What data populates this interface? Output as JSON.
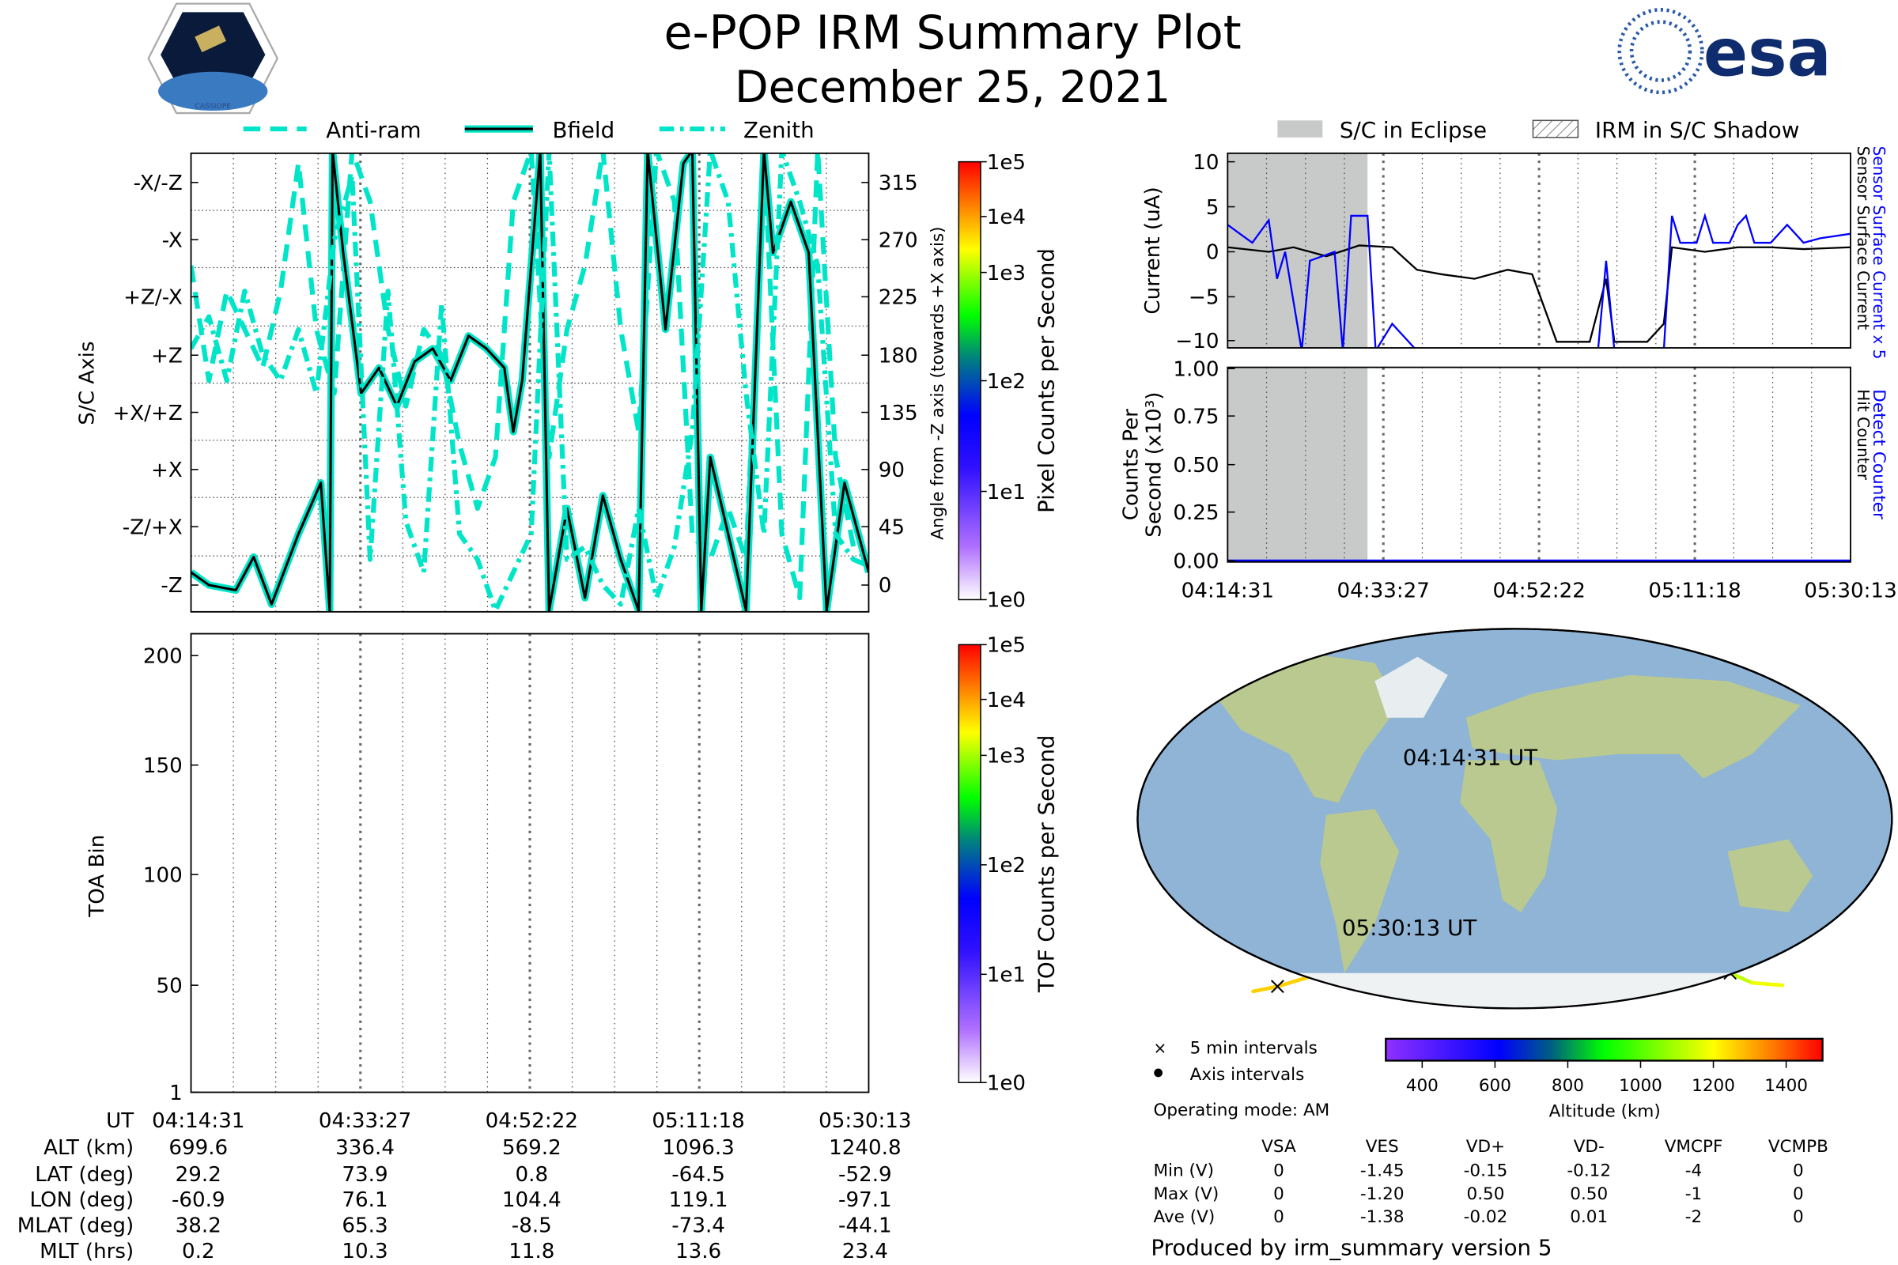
{
  "header": {
    "title": "e-POP IRM Summary Plot",
    "date": "December 25, 2021",
    "left_logo": "CASSIOPE",
    "right_logo": "esa"
  },
  "colors": {
    "trace_cyan": "#00e5c8",
    "current_blue": "#0000ff",
    "eclipse_gray": "#c8cac9",
    "ocean": "#8fb4d6",
    "land": "#b9c98f"
  },
  "attitude_legend": [
    "Anti-ram",
    "Bfield",
    "Zenith"
  ],
  "eclipse_legend": [
    "S/C in Eclipse",
    "IRM in S/C Shadow"
  ],
  "chart_data": [
    {
      "type": "line",
      "name": "attitude",
      "ylabel": "S/C Axis",
      "ylabel_right": "Angle from -Z axis (towards +X axis)",
      "y_axis_labels": [
        "-X/-Z",
        "-X",
        "+Z/-X",
        "+Z",
        "+X/+Z",
        "+X",
        "-Z/+X",
        "-Z"
      ],
      "y_right_ticks": [
        "315",
        "270",
        "225",
        "180",
        "135",
        "90",
        "45",
        "0"
      ],
      "ylim": [
        -12,
        345
      ],
      "xlim_minutes": [
        0,
        75.7
      ],
      "grid": true,
      "legend": "top",
      "colorbar": {
        "label": "Pixel Counts per Second",
        "ticks": [
          "1e5",
          "1e4",
          "1e3",
          "1e2",
          "1e1",
          "1e0"
        ]
      },
      "series": [
        {
          "name": "Anti-ram",
          "style": "dashed",
          "points": [
            [
              0,
              250
            ],
            [
              2,
              160
            ],
            [
              4,
              230
            ],
            [
              6,
              200
            ],
            [
              8,
              170
            ],
            [
              10,
              230
            ],
            [
              12,
              330
            ],
            [
              14,
              200
            ],
            [
              16,
              150
            ],
            [
              18,
              340
            ],
            [
              20,
              300
            ],
            [
              22,
              200
            ],
            [
              24,
              140
            ],
            [
              26,
              200
            ],
            [
              28,
              180
            ],
            [
              30,
              110
            ],
            [
              32,
              60
            ],
            [
              34,
              100
            ],
            [
              36,
              300
            ],
            [
              38,
              340
            ],
            [
              40,
              100
            ],
            [
              42,
              200
            ],
            [
              44,
              250
            ],
            [
              46,
              340
            ],
            [
              48,
              200
            ],
            [
              50,
              120
            ],
            [
              52,
              340
            ],
            [
              54,
              300
            ],
            [
              56,
              40
            ],
            [
              58,
              20
            ],
            [
              60,
              60
            ],
            [
              62,
              20
            ],
            [
              64,
              340
            ],
            [
              66,
              40
            ],
            [
              68,
              -10
            ],
            [
              70,
              340
            ],
            [
              72,
              100
            ],
            [
              74,
              30
            ],
            [
              75.7,
              20
            ]
          ]
        },
        {
          "name": "Bfield",
          "style": "solid",
          "points": [
            [
              0,
              10
            ],
            [
              2,
              0
            ],
            [
              5,
              -4
            ],
            [
              7,
              22
            ],
            [
              9,
              -15
            ],
            [
              12,
              40
            ],
            [
              14.5,
              80
            ],
            [
              15.5,
              -20
            ],
            [
              15.8,
              340
            ],
            [
              17,
              260
            ],
            [
              19,
              150
            ],
            [
              21,
              170
            ],
            [
              23,
              140
            ],
            [
              25,
              175
            ],
            [
              27,
              185
            ],
            [
              29,
              160
            ],
            [
              31,
              195
            ],
            [
              33,
              185
            ],
            [
              35,
              170
            ],
            [
              36,
              120
            ],
            [
              37,
              160
            ],
            [
              39,
              340
            ],
            [
              40,
              -20
            ],
            [
              42,
              60
            ],
            [
              44,
              -10
            ],
            [
              46,
              70
            ],
            [
              48,
              20
            ],
            [
              50,
              -20
            ],
            [
              51,
              340
            ],
            [
              53,
              200
            ],
            [
              55,
              330
            ],
            [
              56,
              340
            ],
            [
              57,
              -20
            ],
            [
              58,
              100
            ],
            [
              60,
              40
            ],
            [
              62,
              -20
            ],
            [
              64,
              340
            ],
            [
              65,
              260
            ],
            [
              67,
              300
            ],
            [
              69,
              260
            ],
            [
              71,
              -20
            ],
            [
              73,
              80
            ],
            [
              75.7,
              10
            ]
          ]
        },
        {
          "name": "Zenith",
          "style": "dashdot",
          "points": [
            [
              0,
              185
            ],
            [
              2,
              210
            ],
            [
              4,
              160
            ],
            [
              6,
              230
            ],
            [
              8,
              180
            ],
            [
              10,
              160
            ],
            [
              12,
              200
            ],
            [
              14,
              150
            ],
            [
              16,
              270
            ],
            [
              18,
              320
            ],
            [
              20,
              20
            ],
            [
              22,
              230
            ],
            [
              24,
              50
            ],
            [
              26,
              10
            ],
            [
              28,
              220
            ],
            [
              30,
              40
            ],
            [
              32,
              20
            ],
            [
              34,
              -20
            ],
            [
              36,
              10
            ],
            [
              38,
              40
            ],
            [
              40,
              340
            ],
            [
              42,
              20
            ],
            [
              44,
              30
            ],
            [
              46,
              0
            ],
            [
              48,
              -15
            ],
            [
              50,
              60
            ],
            [
              52,
              -10
            ],
            [
              54,
              30
            ],
            [
              56,
              120
            ],
            [
              58,
              340
            ],
            [
              60,
              300
            ],
            [
              62,
              150
            ],
            [
              64,
              40
            ],
            [
              66,
              340
            ],
            [
              68,
              300
            ],
            [
              70,
              250
            ],
            [
              72,
              40
            ],
            [
              74,
              20
            ],
            [
              75.7,
              15
            ]
          ]
        }
      ]
    },
    {
      "type": "heatmap",
      "name": "toa",
      "ylabel": "TOA Bin",
      "y_ticks": [
        "200",
        "150",
        "100",
        "50",
        "1"
      ],
      "ylim": [
        1,
        210
      ],
      "colorbar": {
        "label": "TOF Counts per Second",
        "ticks": [
          "1e5",
          "1e4",
          "1e3",
          "1e2",
          "1e1",
          "1e0"
        ]
      }
    },
    {
      "type": "line",
      "name": "current",
      "ylabel": "Current (uA)",
      "y_ticks": [
        "10",
        "5",
        "0",
        "−5",
        "−10"
      ],
      "ylim": [
        -11,
        11
      ],
      "right_labels": [
        "Sensor Surface Current x 5",
        "Sensor Surface Current"
      ],
      "eclipse_minutes": [
        0,
        17
      ],
      "series": [
        {
          "name": "Sensor Surface Current x 5",
          "color": "#0000ff",
          "points": [
            [
              0,
              3
            ],
            [
              1.5,
              2
            ],
            [
              3,
              1
            ],
            [
              5,
              3.5
            ],
            [
              6,
              -3
            ],
            [
              7,
              0
            ],
            [
              9,
              -11
            ],
            [
              10,
              -1
            ],
            [
              13,
              0
            ],
            [
              14,
              -11
            ],
            [
              15,
              4
            ],
            [
              17,
              4
            ],
            [
              18,
              -11
            ],
            [
              20,
              -8
            ],
            [
              23,
              -11
            ],
            [
              45,
              -11
            ],
            [
              46,
              -1
            ],
            [
              47,
              -11
            ],
            [
              53,
              -11
            ],
            [
              54,
              4
            ],
            [
              55,
              1
            ],
            [
              57,
              1
            ],
            [
              58,
              4
            ],
            [
              59,
              1
            ],
            [
              61,
              1
            ],
            [
              62,
              3
            ],
            [
              63,
              4
            ],
            [
              64,
              1
            ],
            [
              66,
              1
            ],
            [
              68,
              3
            ],
            [
              70,
              1
            ],
            [
              72,
              1.5
            ],
            [
              75.7,
              2
            ]
          ]
        },
        {
          "name": "Sensor Surface Current",
          "color": "#000000",
          "points": [
            [
              0,
              0.5
            ],
            [
              5,
              0
            ],
            [
              8,
              0.5
            ],
            [
              12,
              -0.5
            ],
            [
              16,
              0.7
            ],
            [
              20,
              0.5
            ],
            [
              23,
              -2
            ],
            [
              26,
              -2.5
            ],
            [
              30,
              -3
            ],
            [
              34,
              -2
            ],
            [
              37,
              -2.5
            ],
            [
              40,
              -10
            ],
            [
              44,
              -10
            ],
            [
              46,
              -3
            ],
            [
              47,
              -10
            ],
            [
              51,
              -10
            ],
            [
              53,
              -8
            ],
            [
              54,
              0.5
            ],
            [
              58,
              0
            ],
            [
              62,
              0.5
            ],
            [
              66,
              0.5
            ],
            [
              70,
              0.3
            ],
            [
              75.7,
              0.5
            ]
          ]
        }
      ]
    },
    {
      "type": "line",
      "name": "counts",
      "ylabel": "Counts Per Second (x10³)",
      "ylabel_lines": [
        "Counts Per",
        "Second (x10³)"
      ],
      "y_ticks": [
        "1.00",
        "0.75",
        "0.50",
        "0.25",
        "0.00"
      ],
      "ylim": [
        0,
        1
      ],
      "right_labels": [
        "Detect Counter",
        "Hit Counter"
      ],
      "x_ticks": [
        "04:14:31",
        "04:33:27",
        "04:52:22",
        "05:11:18",
        "05:30:13"
      ],
      "series": [
        {
          "name": "Detect Counter",
          "color": "#0000ff",
          "points": [
            [
              0,
              0
            ],
            [
              75.7,
              0
            ]
          ]
        }
      ]
    }
  ],
  "map": {
    "start_label": "04:14:31 UT",
    "end_label": "05:30:13 UT",
    "legend": [
      "5 min intervals",
      "Axis intervals"
    ],
    "colorbar_ticks": [
      "400",
      "600",
      "800",
      "1000",
      "1200",
      "1400"
    ],
    "colorbar_label": "Altitude (km)",
    "operating_mode": "Operating mode: AM"
  },
  "ephemeris": {
    "rows": [
      {
        "label": "UT",
        "values": [
          "04:14:31",
          "04:33:27",
          "04:52:22",
          "05:11:18",
          "05:30:13"
        ]
      },
      {
        "label": "ALT (km)",
        "values": [
          "699.6",
          "336.4",
          "569.2",
          "1096.3",
          "1240.8"
        ]
      },
      {
        "label": "LAT (deg)",
        "values": [
          "29.2",
          "73.9",
          "0.8",
          "-64.5",
          "-52.9"
        ]
      },
      {
        "label": "LON (deg)",
        "values": [
          "-60.9",
          "76.1",
          "104.4",
          "119.1",
          "-97.1"
        ]
      },
      {
        "label": "MLAT (deg)",
        "values": [
          "38.2",
          "65.3",
          "-8.5",
          "-73.4",
          "-44.1"
        ]
      },
      {
        "label": "MLT (hrs)",
        "values": [
          "0.2",
          "10.3",
          "11.8",
          "13.6",
          "23.4"
        ]
      }
    ]
  },
  "voltages": {
    "columns": [
      "VSA",
      "VES",
      "VD+",
      "VD-",
      "VMCPF",
      "VCMPB"
    ],
    "rows": [
      {
        "label": "Min (V)",
        "values": [
          "0",
          "-1.45",
          "-0.15",
          "-0.12",
          "-4",
          "0"
        ]
      },
      {
        "label": "Max (V)",
        "values": [
          "0",
          "-1.20",
          "0.50",
          "0.50",
          "-1",
          "0"
        ]
      },
      {
        "label": "Ave (V)",
        "values": [
          "0",
          "-1.38",
          "-0.02",
          "0.01",
          "-2",
          "0"
        ]
      }
    ]
  },
  "footer": "Produced by irm_summary version 5"
}
